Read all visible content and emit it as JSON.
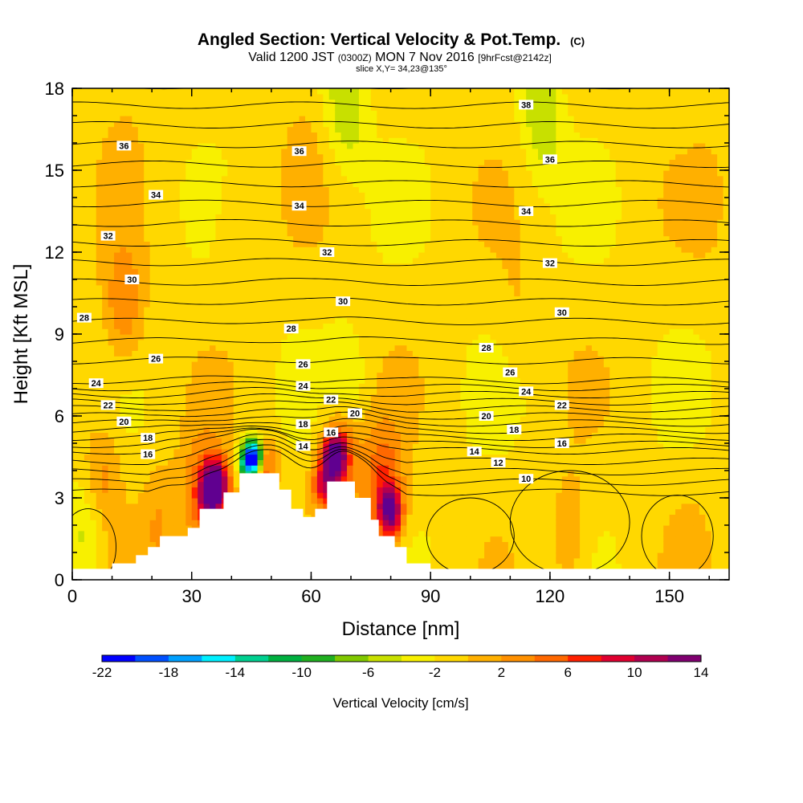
{
  "chart_data": {
    "type": "heatmap",
    "title": "Angled Section: Vertical Velocity & Pot.Temp.",
    "title_note": "(C)",
    "subtitle": {
      "prefix": "Valid 1200 JST",
      "utc": "(0300Z)",
      "date": "MON 7 Nov 2016",
      "fcst": "[9hrFcst@2142z]"
    },
    "slice_text": "slice X,Y= 34,23@135°",
    "xlabel": "Distance [nm]",
    "ylabel": "Height [Kft MSL]",
    "xlim": [
      0,
      165
    ],
    "ylim": [
      0,
      18
    ],
    "x_ticks": [
      "0",
      "30",
      "60",
      "90",
      "120",
      "150"
    ],
    "y_ticks": [
      "0",
      "3",
      "6",
      "9",
      "12",
      "15",
      "18"
    ],
    "colorbar": {
      "label": "Vertical Velocity [cm/s]",
      "levels": [
        -22,
        -20,
        -18,
        -16,
        -14,
        -12,
        -10,
        -8,
        -6,
        -4,
        -2,
        0,
        2,
        4,
        6,
        8,
        10,
        12,
        14
      ],
      "tick_labels": [
        "-22",
        "-18",
        "-14",
        "-10",
        "-6",
        "-2",
        "2",
        "6",
        "10",
        "14"
      ],
      "colors": [
        "#0000ff",
        "#0050ff",
        "#00a0ff",
        "#00f0ff",
        "#00d090",
        "#00b040",
        "#20b020",
        "#80c800",
        "#c8e000",
        "#f8f000",
        "#ffd800",
        "#ffb000",
        "#ff9000",
        "#ff6800",
        "#ff2000",
        "#e00030",
        "#b00050",
        "#800070",
        "#600090"
      ]
    },
    "contour_labels": [
      {
        "t": "38",
        "x": 114,
        "y": 17.4
      },
      {
        "t": "36",
        "x": 13,
        "y": 15.9
      },
      {
        "t": "36",
        "x": 57,
        "y": 15.7
      },
      {
        "t": "36",
        "x": 120,
        "y": 15.4
      },
      {
        "t": "34",
        "x": 21,
        "y": 14.1
      },
      {
        "t": "34",
        "x": 57,
        "y": 13.7
      },
      {
        "t": "34",
        "x": 114,
        "y": 13.5
      },
      {
        "t": "32",
        "x": 9,
        "y": 12.6
      },
      {
        "t": "32",
        "x": 64,
        "y": 12
      },
      {
        "t": "32",
        "x": 120,
        "y": 11.6
      },
      {
        "t": "30",
        "x": 15,
        "y": 11
      },
      {
        "t": "30",
        "x": 68,
        "y": 10.2
      },
      {
        "t": "30",
        "x": 123,
        "y": 9.8
      },
      {
        "t": "28",
        "x": 3,
        "y": 9.6
      },
      {
        "t": "28",
        "x": 55,
        "y": 9.2
      },
      {
        "t": "28",
        "x": 104,
        "y": 8.5
      },
      {
        "t": "26",
        "x": 21,
        "y": 8.1
      },
      {
        "t": "26",
        "x": 58,
        "y": 7.9
      },
      {
        "t": "26",
        "x": 110,
        "y": 7.6
      },
      {
        "t": "24",
        "x": 6,
        "y": 7.2
      },
      {
        "t": "24",
        "x": 58,
        "y": 7.1
      },
      {
        "t": "24",
        "x": 114,
        "y": 6.9
      },
      {
        "t": "22",
        "x": 9,
        "y": 6.4
      },
      {
        "t": "22",
        "x": 65,
        "y": 6.6
      },
      {
        "t": "22",
        "x": 123,
        "y": 6.4
      },
      {
        "t": "20",
        "x": 13,
        "y": 5.8
      },
      {
        "t": "20",
        "x": 71,
        "y": 6.1
      },
      {
        "t": "20",
        "x": 104,
        "y": 6
      },
      {
        "t": "18",
        "x": 19,
        "y": 5.2
      },
      {
        "t": "18",
        "x": 58,
        "y": 5.7
      },
      {
        "t": "18",
        "x": 111,
        "y": 5.5
      },
      {
        "t": "16",
        "x": 19,
        "y": 4.6
      },
      {
        "t": "16",
        "x": 65,
        "y": 5.4
      },
      {
        "t": "16",
        "x": 123,
        "y": 5
      },
      {
        "t": "14",
        "x": 58,
        "y": 4.9
      },
      {
        "t": "14",
        "x": 101,
        "y": 4.7
      },
      {
        "t": "12",
        "x": 107,
        "y": 4.3
      },
      {
        "t": "10",
        "x": 114,
        "y": 3.7
      }
    ],
    "theta_levels": [
      10,
      11,
      12,
      13,
      14,
      15,
      16,
      17,
      18,
      19,
      20,
      21,
      22,
      23,
      24,
      25,
      26,
      27,
      28,
      29,
      30,
      31,
      32,
      33,
      34,
      35,
      36,
      37,
      38,
      39
    ],
    "terrain_profile": [
      [
        0,
        0.4
      ],
      [
        10,
        0.4
      ],
      [
        10,
        0.6
      ],
      [
        16,
        0.6
      ],
      [
        16,
        0.9
      ],
      [
        19,
        0.9
      ],
      [
        19,
        1.2
      ],
      [
        22,
        1.2
      ],
      [
        22,
        1.6
      ],
      [
        29,
        1.6
      ],
      [
        29,
        1.9
      ],
      [
        32,
        1.9
      ],
      [
        32,
        2.6
      ],
      [
        38,
        2.6
      ],
      [
        38,
        3.2
      ],
      [
        42,
        3.2
      ],
      [
        42,
        3.9
      ],
      [
        52,
        3.9
      ],
      [
        52,
        3.3
      ],
      [
        55,
        3.3
      ],
      [
        55,
        2.6
      ],
      [
        58,
        2.6
      ],
      [
        58,
        2.3
      ],
      [
        61,
        2.3
      ],
      [
        61,
        2.6
      ],
      [
        64,
        2.6
      ],
      [
        64,
        3.6
      ],
      [
        71,
        3.6
      ],
      [
        71,
        3
      ],
      [
        75,
        3
      ],
      [
        75,
        2.2
      ],
      [
        77,
        2.2
      ],
      [
        77,
        1.6
      ],
      [
        81,
        1.6
      ],
      [
        81,
        1.2
      ],
      [
        84,
        1.2
      ],
      [
        84,
        0.6
      ],
      [
        90,
        0.6
      ],
      [
        90,
        0.4
      ],
      [
        165,
        0.4
      ]
    ],
    "velocity_features": [
      {
        "x": 46,
        "y": 4.5,
        "v": -22
      },
      {
        "x": 44,
        "y": 4.3,
        "v": -12
      },
      {
        "x": 48,
        "y": 4.3,
        "v": 10
      },
      {
        "x": 37,
        "y": 3.6,
        "v": 8
      },
      {
        "x": 35,
        "y": 3.2,
        "v": 10
      },
      {
        "x": 33,
        "y": 3,
        "v": 6
      },
      {
        "x": 66,
        "y": 4.5,
        "v": 14
      },
      {
        "x": 68,
        "y": 5,
        "v": 6
      },
      {
        "x": 63,
        "y": 3.5,
        "v": 8
      },
      {
        "x": 69,
        "y": 6.5,
        "v": -6
      },
      {
        "x": 69,
        "y": 17.4,
        "v": -6
      },
      {
        "x": 80,
        "y": 2.5,
        "v": 12
      },
      {
        "x": 78,
        "y": 3.5,
        "v": 6
      },
      {
        "x": 4,
        "y": 2,
        "v": -6
      },
      {
        "x": 7,
        "y": 3.6,
        "v": 4
      },
      {
        "x": 13,
        "y": 10,
        "v": 4
      },
      {
        "x": 13,
        "y": 16,
        "v": 0
      },
      {
        "x": 22,
        "y": 2,
        "v": 2
      },
      {
        "x": 112,
        "y": 10,
        "v": 0
      },
      {
        "x": 125,
        "y": 1.5,
        "v": 2
      },
      {
        "x": 118,
        "y": 17,
        "v": -6
      },
      {
        "x": 97,
        "y": 2.2,
        "v": -2
      },
      {
        "x": 155,
        "y": 1.5,
        "v": 0
      },
      {
        "x": 40,
        "y": 13,
        "v": 0
      },
      {
        "x": 58,
        "y": 16,
        "v": 0
      },
      {
        "x": 160,
        "y": 14,
        "v": 0
      }
    ]
  }
}
